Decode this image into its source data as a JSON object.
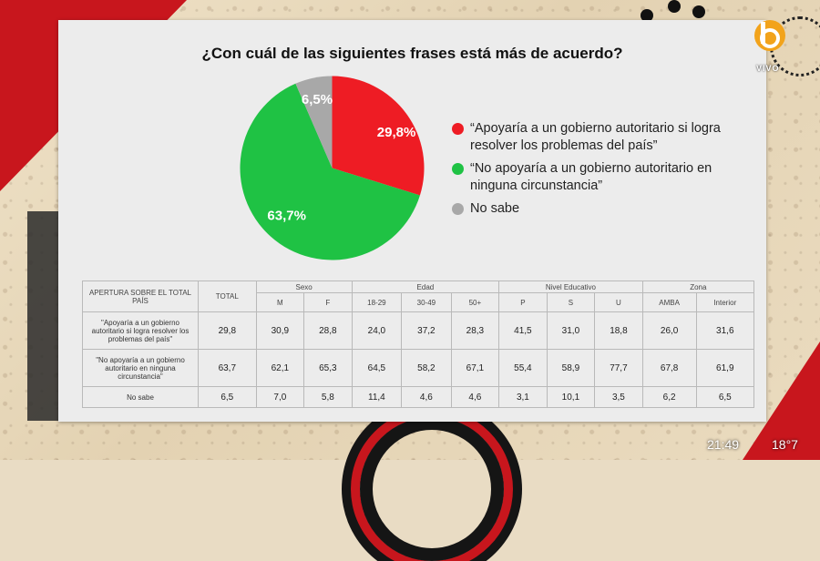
{
  "title": "¿Con cuál de las siguientes frases está más de acuerdo?",
  "chart_data": {
    "type": "pie",
    "slices": [
      {
        "label": "“Apoyaría a un gobierno autoritario si logra resolver los problemas del país”",
        "value": 29.8,
        "display": "29,8%",
        "color": "#ee1c24"
      },
      {
        "label": "“No apoyaría a un gobierno autoritario en ninguna circunstancia”",
        "value": 63.7,
        "display": "63,7%",
        "color": "#1fc244"
      },
      {
        "label": "No sabe",
        "value": 6.5,
        "display": "6,5%",
        "color": "#a8a8a8"
      }
    ],
    "legend_position": "right"
  },
  "table": {
    "corner_label": "APERTURA SOBRE EL TOTAL PAÍS",
    "total_label": "TOTAL",
    "groups": [
      {
        "name": "Sexo",
        "cols": [
          "M",
          "F"
        ]
      },
      {
        "name": "Edad",
        "cols": [
          "18-29",
          "30-49",
          "50+"
        ]
      },
      {
        "name": "Nivel Educativo",
        "cols": [
          "P",
          "S",
          "U"
        ]
      },
      {
        "name": "Zona",
        "cols": [
          "AMBA",
          "Interior"
        ]
      }
    ],
    "rows": [
      {
        "label": "\"Apoyaría a un gobierno autoritario si logra resolver los problemas del país\"",
        "values": [
          "29,8",
          "30,9",
          "28,8",
          "24,0",
          "37,2",
          "28,3",
          "41,5",
          "31,0",
          "18,8",
          "26,0",
          "31,6"
        ]
      },
      {
        "label": "\"No apoyaría a un gobierno autoritario en ninguna circunstancia\"",
        "values": [
          "63,7",
          "62,1",
          "65,3",
          "64,5",
          "58,2",
          "67,1",
          "55,4",
          "58,9",
          "77,7",
          "67,8",
          "61,9"
        ]
      },
      {
        "label": "No sabe",
        "values": [
          "6,5",
          "7,0",
          "5,8",
          "11,4",
          "4,6",
          "4,6",
          "3,1",
          "10,1",
          "3,5",
          "6,2",
          "6,5"
        ]
      }
    ]
  },
  "overlay": {
    "logo_letter": "b",
    "logo_sub": "VIVO",
    "clock": "21:49",
    "temperature": "18°7"
  },
  "colors": {
    "accent_red": "#c8161d"
  }
}
